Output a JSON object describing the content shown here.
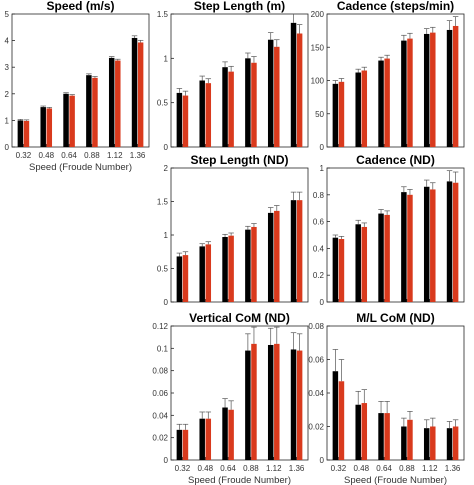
{
  "colors": {
    "series_a": "#000000",
    "series_b": "#d93a1d",
    "error_bar": "#555555",
    "axis": "#262626"
  },
  "chart_data": [
    {
      "type": "bar",
      "title": "Speed (m/s)",
      "xlabel": "Speed (Froude Number)",
      "categories": [
        "0.32",
        "0.48",
        "0.64",
        "0.88",
        "1.12",
        "1.36"
      ],
      "ylim": [
        0,
        5
      ],
      "yticks": [
        "0",
        "1",
        "2",
        "3",
        "4",
        "5"
      ],
      "show_xticklabels": true,
      "series": [
        {
          "values": [
            1.0,
            1.5,
            2.0,
            2.7,
            3.35,
            4.1
          ],
          "errors": [
            0.04,
            0.04,
            0.04,
            0.05,
            0.05,
            0.08
          ]
        },
        {
          "values": [
            0.98,
            1.45,
            1.93,
            2.6,
            3.25,
            3.93
          ],
          "errors": [
            0.04,
            0.04,
            0.04,
            0.05,
            0.05,
            0.08
          ]
        }
      ]
    },
    {
      "type": "bar",
      "title": "Step Length (m)",
      "xlabel": "",
      "categories": [
        "0.32",
        "0.48",
        "0.64",
        "0.88",
        "1.12",
        "1.36"
      ],
      "ylim": [
        0,
        1.5
      ],
      "yticks": [
        "0",
        "0.5",
        "1",
        "1.5"
      ],
      "show_xticklabels": false,
      "series": [
        {
          "values": [
            0.61,
            0.75,
            0.9,
            1.0,
            1.21,
            1.4
          ],
          "errors": [
            0.05,
            0.05,
            0.06,
            0.06,
            0.08,
            0.1
          ]
        },
        {
          "values": [
            0.58,
            0.72,
            0.85,
            0.95,
            1.13,
            1.28
          ],
          "errors": [
            0.05,
            0.05,
            0.06,
            0.07,
            0.08,
            0.1
          ]
        }
      ]
    },
    {
      "type": "bar",
      "title": "Cadence (steps/min)",
      "xlabel": "",
      "categories": [
        "0.32",
        "0.48",
        "0.64",
        "0.88",
        "1.12",
        "1.36"
      ],
      "ylim": [
        0,
        200
      ],
      "yticks": [
        "0",
        "50",
        "100",
        "150",
        "200"
      ],
      "show_xticklabels": false,
      "series": [
        {
          "values": [
            95,
            112,
            130,
            160,
            170,
            176
          ],
          "errors": [
            5,
            5,
            5,
            8,
            8,
            14
          ]
        },
        {
          "values": [
            98,
            115,
            133,
            163,
            172,
            182
          ],
          "errors": [
            5,
            5,
            5,
            8,
            8,
            14
          ]
        }
      ]
    },
    {
      "type": "bar",
      "title": "Step Length (ND)",
      "xlabel": "",
      "categories": [
        "0.32",
        "0.48",
        "0.64",
        "0.88",
        "1.12",
        "1.36"
      ],
      "ylim": [
        0,
        2
      ],
      "yticks": [
        "0",
        "0.5",
        "1",
        "1.5",
        "2"
      ],
      "show_xticklabels": false,
      "series": [
        {
          "values": [
            0.68,
            0.83,
            0.97,
            1.08,
            1.33,
            1.52
          ],
          "errors": [
            0.05,
            0.04,
            0.04,
            0.05,
            0.08,
            0.12
          ]
        },
        {
          "values": [
            0.7,
            0.86,
            0.99,
            1.12,
            1.36,
            1.52
          ],
          "errors": [
            0.05,
            0.04,
            0.04,
            0.05,
            0.08,
            0.12
          ]
        }
      ]
    },
    {
      "type": "bar",
      "title": "Cadence (ND)",
      "xlabel": "",
      "categories": [
        "0.32",
        "0.48",
        "0.64",
        "0.88",
        "1.12",
        "1.36"
      ],
      "ylim": [
        0,
        1
      ],
      "yticks": [
        "0",
        "0.2",
        "0.4",
        "0.6",
        "0.8",
        "1"
      ],
      "show_xticklabels": false,
      "series": [
        {
          "values": [
            0.48,
            0.58,
            0.66,
            0.82,
            0.86,
            0.9
          ],
          "errors": [
            0.02,
            0.03,
            0.03,
            0.04,
            0.05,
            0.08
          ]
        },
        {
          "values": [
            0.47,
            0.56,
            0.65,
            0.8,
            0.84,
            0.89
          ],
          "errors": [
            0.02,
            0.03,
            0.03,
            0.04,
            0.05,
            0.08
          ]
        }
      ]
    },
    {
      "type": "bar",
      "title": "Vertical CoM (ND)",
      "xlabel": "Speed (Froude Number)",
      "categories": [
        "0.32",
        "0.48",
        "0.64",
        "0.88",
        "1.12",
        "1.36"
      ],
      "ylim": [
        0,
        0.12
      ],
      "yticks": [
        "0",
        "0.02",
        "0.04",
        "0.06",
        "0.08",
        "0.1",
        "0.12"
      ],
      "show_xticklabels": true,
      "series": [
        {
          "values": [
            0.027,
            0.037,
            0.047,
            0.098,
            0.103,
            0.099
          ],
          "errors": [
            0.005,
            0.006,
            0.008,
            0.015,
            0.015,
            0.015
          ]
        },
        {
          "values": [
            0.027,
            0.037,
            0.045,
            0.104,
            0.104,
            0.098
          ],
          "errors": [
            0.005,
            0.006,
            0.008,
            0.015,
            0.015,
            0.015
          ]
        }
      ]
    },
    {
      "type": "bar",
      "title": "M/L CoM (ND)",
      "xlabel": "Speed (Froude Number)",
      "categories": [
        "0.32",
        "0.48",
        "0.64",
        "0.88",
        "1.12",
        "1.36"
      ],
      "ylim": [
        0,
        0.08
      ],
      "yticks": [
        "0",
        "0.02",
        "0.04",
        "0.06",
        "0.08"
      ],
      "show_xticklabels": true,
      "series": [
        {
          "values": [
            0.053,
            0.033,
            0.028,
            0.02,
            0.019,
            0.019
          ],
          "errors": [
            0.013,
            0.008,
            0.007,
            0.005,
            0.005,
            0.004
          ]
        },
        {
          "values": [
            0.047,
            0.034,
            0.028,
            0.024,
            0.02,
            0.02
          ],
          "errors": [
            0.013,
            0.008,
            0.007,
            0.005,
            0.005,
            0.004
          ]
        }
      ]
    }
  ]
}
